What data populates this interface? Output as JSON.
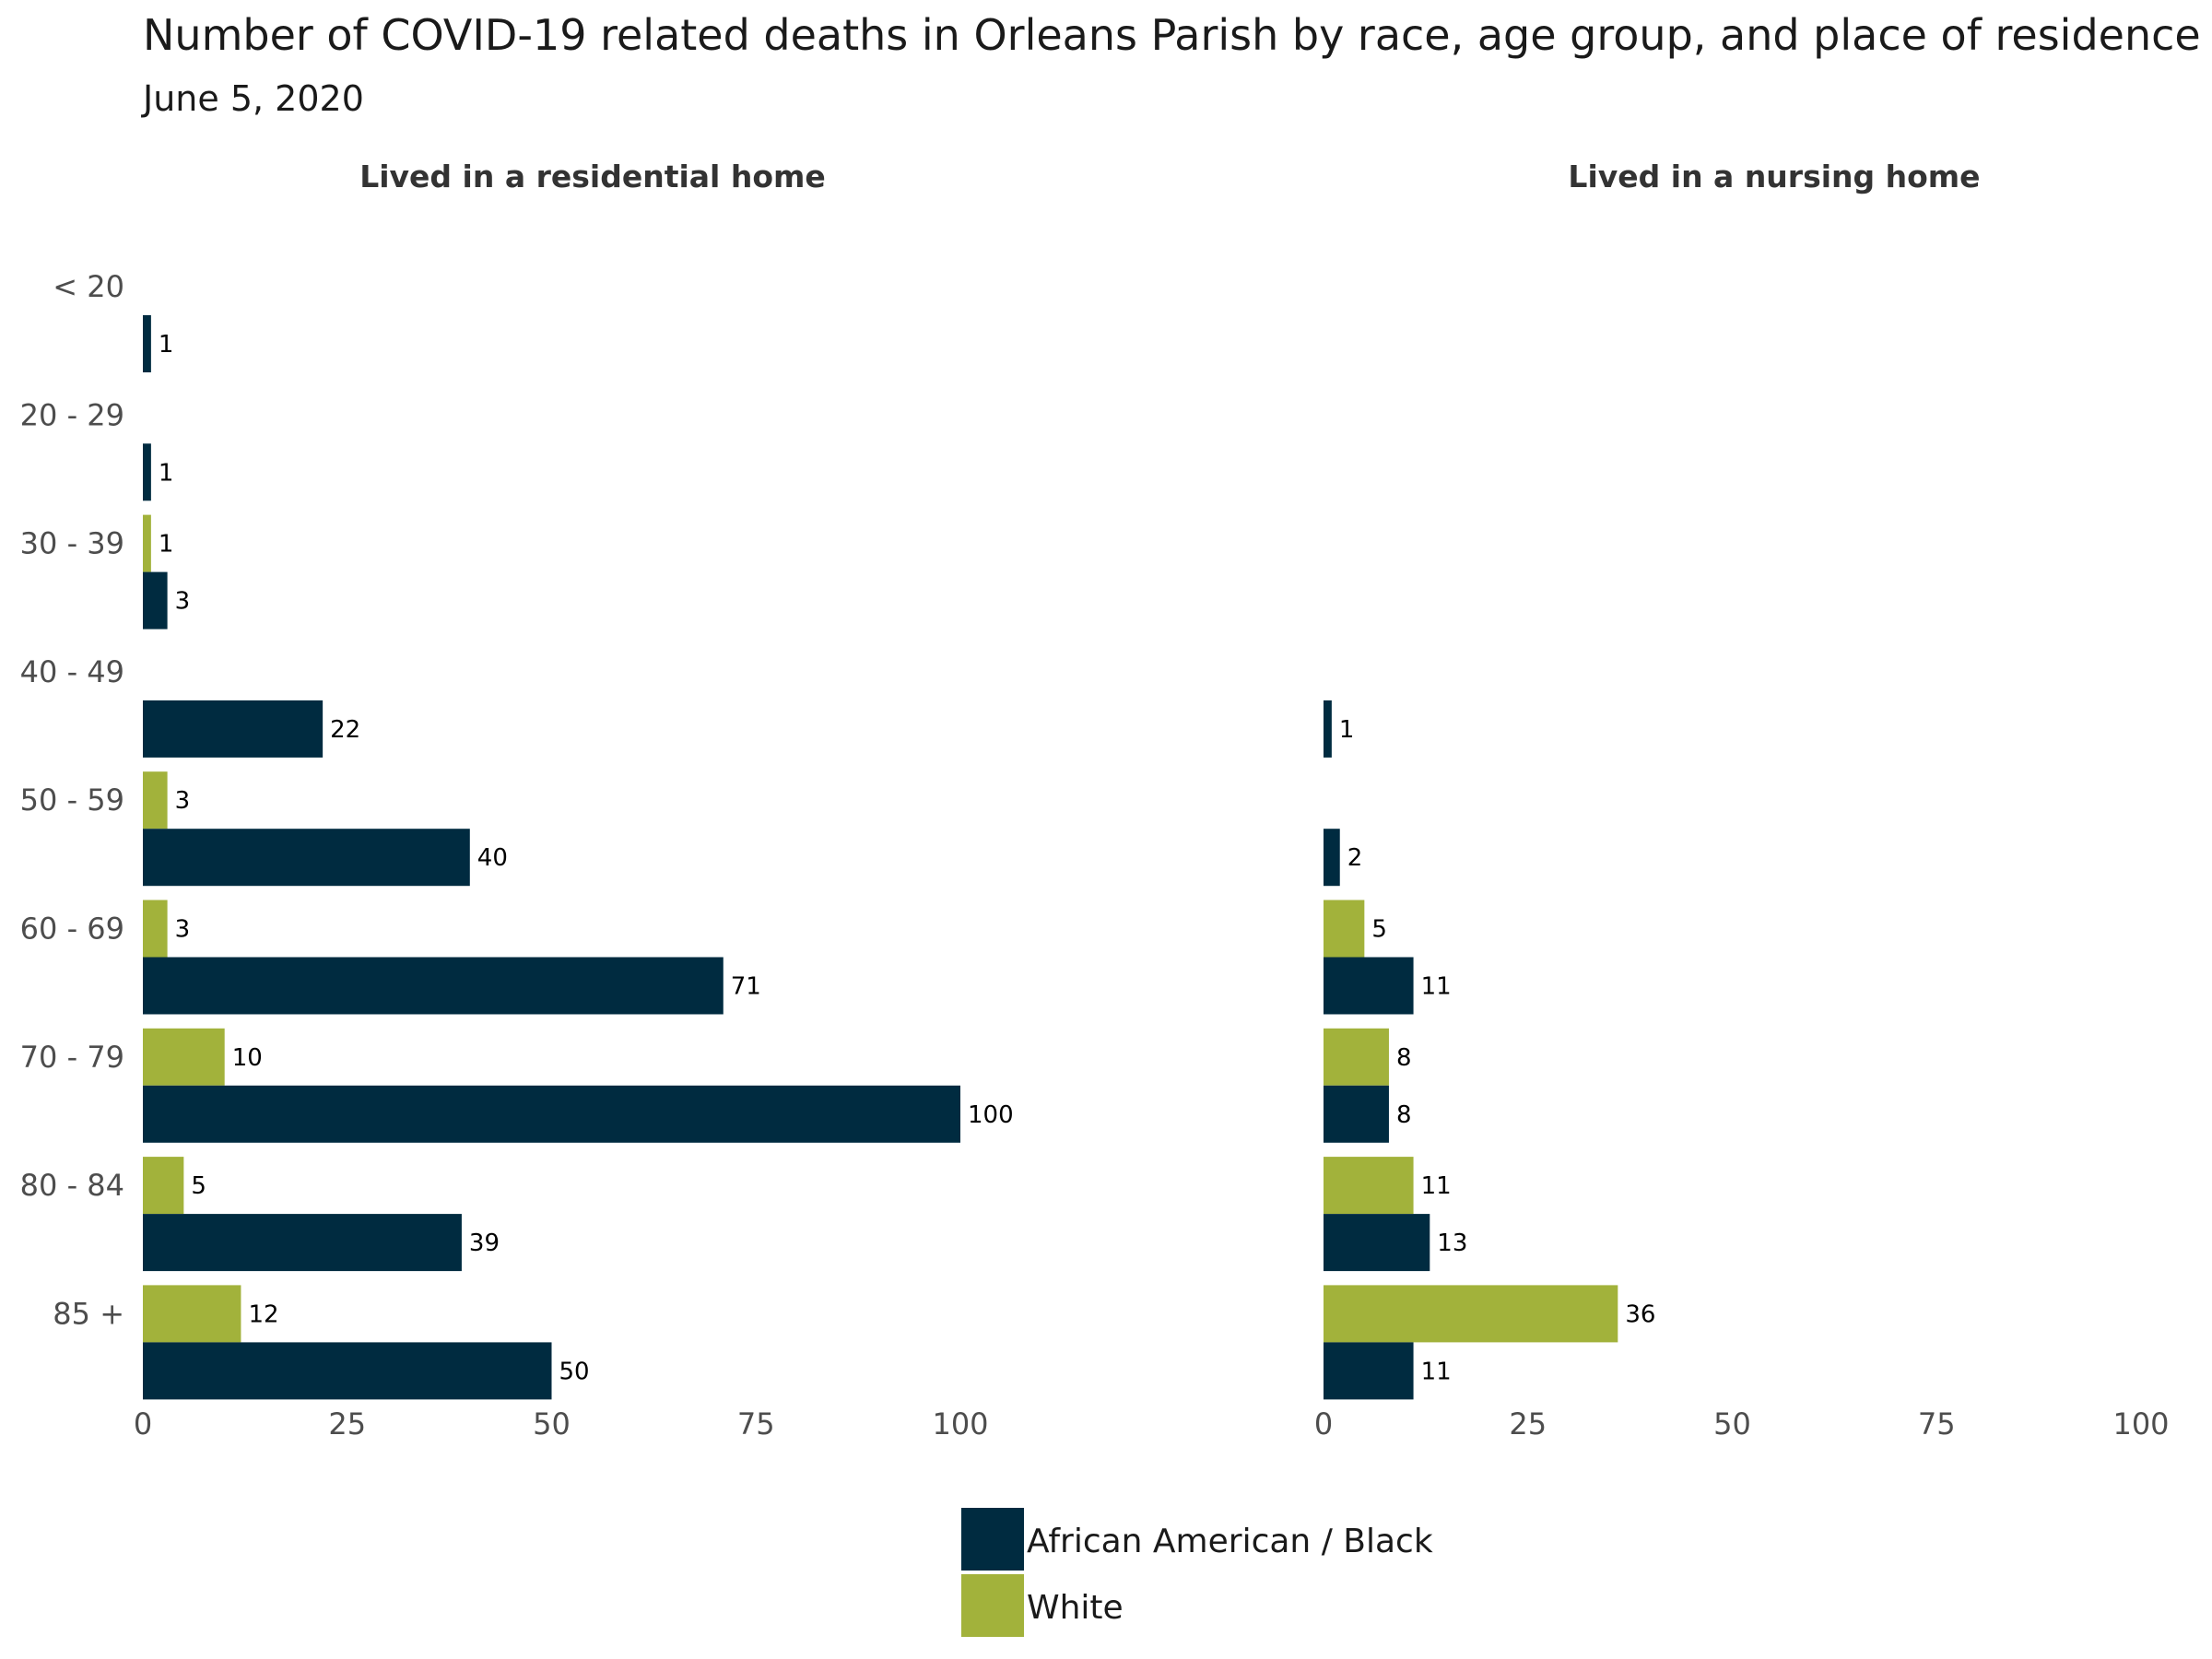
{
  "chart_data": {
    "type": "bar",
    "orientation": "horizontal",
    "title": "Number of COVID-19 related deaths in Orleans Parish by race, age group, and place of residence",
    "subtitle": "June 5, 2020",
    "categories": [
      "< 20",
      "20 - 29",
      "30 - 39",
      "40 - 49",
      "50 - 59",
      "60 - 69",
      "70 - 79",
      "80 - 84",
      "85 +"
    ],
    "xlim": [
      0,
      100
    ],
    "xticks": [
      0,
      25,
      50,
      75,
      100
    ],
    "grid": false,
    "legend": {
      "placement": "bottom-center",
      "entries": [
        {
          "name": "African American / Black",
          "color": "#002b40"
        },
        {
          "name": "White",
          "color": "#a2b23b"
        }
      ]
    },
    "panels": [
      {
        "title": "Lived in a residential home",
        "series": [
          {
            "name": "White",
            "color": "#a2b23b",
            "values": [
              null,
              null,
              1,
              null,
              3,
              3,
              10,
              5,
              12
            ]
          },
          {
            "name": "African American / Black",
            "color": "#002b40",
            "values": [
              1,
              1,
              3,
              22,
              40,
              71,
              100,
              39,
              50
            ]
          }
        ]
      },
      {
        "title": "Lived in a nursing home",
        "series": [
          {
            "name": "White",
            "color": "#a2b23b",
            "values": [
              null,
              null,
              null,
              null,
              null,
              5,
              8,
              11,
              36
            ]
          },
          {
            "name": "African American / Black",
            "color": "#002b40",
            "values": [
              null,
              null,
              null,
              1,
              2,
              11,
              8,
              13,
              11
            ]
          }
        ]
      }
    ]
  }
}
